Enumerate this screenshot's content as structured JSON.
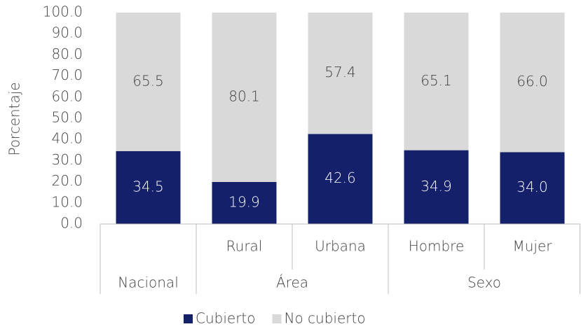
{
  "chart_data": {
    "type": "stacked_bar",
    "y_axis_label": "Porcentaje",
    "categories": [
      null,
      "Rural",
      "Urbana",
      "Hombre",
      "Mujer"
    ],
    "groups": [
      {
        "name": "Nacional",
        "count": 1
      },
      {
        "name": "Área",
        "count": 2
      },
      {
        "name": "Sexo",
        "count": 2
      }
    ],
    "series": [
      {
        "name": "Cubierto",
        "color": "#14206a",
        "label_color": "#ffffff",
        "values": [
          34.5,
          19.9,
          42.6,
          34.9,
          34.0
        ],
        "value_labels": [
          "34.5",
          "19.9",
          "42.6",
          "34.9",
          "34.0"
        ]
      },
      {
        "name": "No cubierto",
        "color": "#d9d9d9",
        "label_color": "#404040",
        "values": [
          65.5,
          80.1,
          57.4,
          65.1,
          66.0
        ],
        "value_labels": [
          "65.5",
          "80.1",
          "57.4",
          "65.1",
          "66.0"
        ]
      }
    ],
    "ylim": [
      0,
      100
    ],
    "yticks": [
      {
        "value": 0,
        "label": "0.0"
      },
      {
        "value": 10,
        "label": "10.0"
      },
      {
        "value": 20,
        "label": "20.0"
      },
      {
        "value": 30,
        "label": "30.0"
      },
      {
        "value": 40,
        "label": "40.0"
      },
      {
        "value": 50,
        "label": "50.0"
      },
      {
        "value": 60,
        "label": "60.0"
      },
      {
        "value": 70,
        "label": "70.0"
      },
      {
        "value": 80,
        "label": "80.0"
      },
      {
        "value": 90,
        "label": "90.0"
      },
      {
        "value": 100,
        "label": "100.0"
      }
    ],
    "legend": "bottom"
  }
}
